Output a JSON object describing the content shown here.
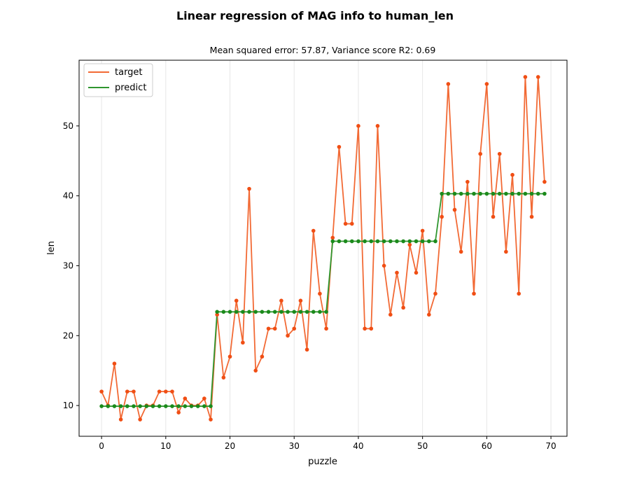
{
  "chart_data": {
    "type": "line",
    "title": "Linear regression of MAG info to human_len",
    "subtitle": "Mean squared error: 57.87, Variance score R2: 0.69",
    "xlabel": "puzzle",
    "ylabel": "len",
    "xlim": [
      -3.5,
      72.5
    ],
    "ylim": [
      5.6,
      59.4
    ],
    "xticks": [
      0,
      10,
      20,
      30,
      40,
      50,
      60,
      70
    ],
    "yticks": [
      10,
      20,
      30,
      40,
      50
    ],
    "grid": "vertical",
    "legend_position": "top-left",
    "x": [
      0,
      1,
      2,
      3,
      4,
      5,
      6,
      7,
      8,
      9,
      10,
      11,
      12,
      13,
      14,
      15,
      16,
      17,
      18,
      19,
      20,
      21,
      22,
      23,
      24,
      25,
      26,
      27,
      28,
      29,
      30,
      31,
      32,
      33,
      34,
      35,
      36,
      37,
      38,
      39,
      40,
      41,
      42,
      43,
      44,
      45,
      46,
      47,
      48,
      49,
      50,
      51,
      52,
      53,
      54,
      55,
      56,
      57,
      58,
      59,
      60,
      61,
      62,
      63,
      64,
      65,
      66,
      67,
      68,
      69
    ],
    "series": [
      {
        "name": "target",
        "color": "#f26a35",
        "marker_color": "#f04e14",
        "values": [
          12,
          10,
          16,
          8,
          12,
          12,
          8,
          10,
          10,
          12,
          12,
          12,
          9,
          11,
          10,
          10,
          11,
          8,
          23,
          14,
          17,
          25,
          19,
          41,
          15,
          17,
          21,
          21,
          25,
          20,
          21,
          25,
          18,
          35,
          26,
          21,
          34,
          47,
          36,
          36,
          50,
          21,
          21,
          50,
          30,
          23,
          29,
          24,
          33,
          29,
          35,
          23,
          26,
          37,
          56,
          38,
          32,
          42,
          26,
          46,
          56,
          37,
          46,
          32,
          43,
          26,
          57,
          37,
          57,
          42
        ]
      },
      {
        "name": "predict",
        "color": "#2f962f",
        "marker_color": "#1b8a1b",
        "values": [
          9.9,
          9.9,
          9.9,
          9.9,
          9.9,
          9.9,
          9.9,
          9.9,
          9.9,
          9.9,
          9.9,
          9.9,
          9.9,
          9.9,
          9.9,
          9.9,
          9.9,
          9.9,
          23.4,
          23.4,
          23.4,
          23.4,
          23.4,
          23.4,
          23.4,
          23.4,
          23.4,
          23.4,
          23.4,
          23.4,
          23.4,
          23.4,
          23.4,
          23.4,
          23.4,
          23.4,
          33.5,
          33.5,
          33.5,
          33.5,
          33.5,
          33.5,
          33.5,
          33.5,
          33.5,
          33.5,
          33.5,
          33.5,
          33.5,
          33.5,
          33.5,
          33.5,
          33.5,
          40.3,
          40.3,
          40.3,
          40.3,
          40.3,
          40.3,
          40.3,
          40.3,
          40.3,
          40.3,
          40.3,
          40.3,
          40.3,
          40.3,
          40.3,
          40.3,
          40.3
        ]
      }
    ]
  }
}
